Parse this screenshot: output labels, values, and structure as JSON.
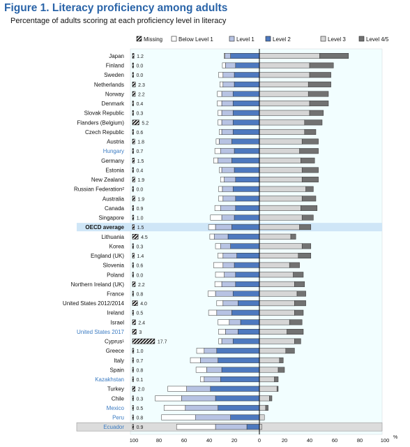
{
  "header": {
    "title": "Figure 1. Literacy proficiency among adults",
    "subtitle": "Percentage of adults scoring at each proficiency level in literacy"
  },
  "colors": {
    "missing": "#111111",
    "below_level_1": "#ffffff",
    "level_1": "#b7c3e3",
    "level_2": "#4d79bf",
    "level_3": "#d6d6d6",
    "level_4_5": "#727272",
    "highlight_label": "#3b7bc2",
    "panel_bg": "#f2feff",
    "oecd_band": "#cfe6f7"
  },
  "chart_data": {
    "type": "bar",
    "subtype": "diverging-stacked-horizontal",
    "title": "Figure 1. Literacy proficiency among adults",
    "subtitle": "Percentage of adults scoring at each proficiency level in literacy",
    "xlim": [
      -100,
      100
    ],
    "x_ticks": [
      "100",
      "80",
      "60",
      "40",
      "20",
      "0",
      "20",
      "40",
      "60",
      "80",
      "100"
    ],
    "x_unit": "%",
    "legend": [
      "Missing",
      "Below Level 1",
      "Level 1",
      "Level 2",
      "Level 3",
      "Level 4/5"
    ],
    "legend_position": "top",
    "categories": [
      "Japan",
      "Finland",
      "Sweden",
      "Netherlands",
      "Norway",
      "Denmark",
      "Slovak Republic",
      "Flanders (Belgium)",
      "Czech Republic",
      "Austria",
      "Hungary",
      "Germany",
      "Estonia",
      "New Zealand",
      "Russian Federation²",
      "Australia",
      "Canada",
      "Singapore",
      "OECD average",
      "Lithuania",
      "Korea",
      "England (UK)",
      "Slovenia",
      "Poland",
      "Northern Ireland (UK)",
      "France",
      "United States 2012/2014",
      "Ireland",
      "Israel",
      "United States 2017",
      "Cyprus¹",
      "Greece",
      "Italy",
      "Spain",
      "Kazakhstan",
      "Turkey",
      "Chile",
      "Mexico",
      "Peru",
      "Ecuador"
    ],
    "highlighted_categories": [
      "Hungary",
      "United States 2017",
      "Kazakhstan",
      "Mexico",
      "Peru",
      "Ecuador"
    ],
    "missing_labels": [
      "1.2",
      "0.0",
      "0.0",
      "2.3",
      "2.2",
      "0.4",
      "0.3",
      "5.2",
      "0.6",
      "1.8",
      "0.7",
      "1.5",
      "0.4",
      "1.9",
      "0.0",
      "1.9",
      "0.9",
      "1.0",
      "1.5",
      "4.5",
      "0.3",
      "1.4",
      "0.6",
      "0.0",
      "2.2",
      "0.8",
      "4.0",
      "0.5",
      "2.4",
      "3",
      "17.7",
      "1.0",
      "0.7",
      "0.8",
      "0.1",
      "2.0",
      "0.3",
      "0.5",
      "0.8",
      "0.9"
    ],
    "series": [
      {
        "name": "Missing",
        "values": [
          1.2,
          0.0,
          0.0,
          2.3,
          2.2,
          0.4,
          0.3,
          5.2,
          0.6,
          1.8,
          0.7,
          1.5,
          0.4,
          1.9,
          0.0,
          1.9,
          0.9,
          1.0,
          1.5,
          4.5,
          0.3,
          1.4,
          0.6,
          0.0,
          2.2,
          0.8,
          4.0,
          0.5,
          2.4,
          3.0,
          17.7,
          1.0,
          0.7,
          0.8,
          0.1,
          2.0,
          0.3,
          0.5,
          0.8,
          0.9
        ]
      },
      {
        "name": "Below Level 1",
        "values": [
          0.6,
          2.5,
          3.5,
          2.5,
          3.5,
          3.5,
          3,
          3,
          2,
          2.5,
          4.5,
          3.5,
          2,
          3,
          3,
          3.5,
          4.5,
          9,
          5.5,
          3.5,
          4,
          4,
          7.5,
          7,
          5.5,
          6,
          5,
          6.5,
          9,
          5.5,
          2.5,
          6,
          8,
          8.5,
          3,
          15,
          21,
          17,
          27,
          31
        ]
      },
      {
        "name": "Level 1",
        "values": [
          4.5,
          8,
          9,
          9,
          9,
          9,
          9,
          9,
          9,
          10,
          11,
          11,
          10,
          9,
          8.5,
          10,
          12,
          10,
          13,
          11,
          8,
          11,
          9,
          9,
          11,
          14,
          12,
          12,
          9,
          10,
          9,
          10,
          14,
          12,
          13,
          19,
          27,
          26,
          28,
          25
        ]
      },
      {
        "name": "Level 2",
        "values": [
          23,
          19,
          20,
          20,
          21,
          21,
          21,
          21,
          21,
          22,
          20,
          22,
          20,
          19,
          21,
          19,
          19,
          20,
          22,
          25,
          23,
          18,
          20,
          19,
          19,
          21,
          17,
          22,
          15,
          17,
          21,
          34,
          33,
          30,
          31,
          39,
          35,
          33,
          23,
          10
        ]
      },
      {
        "name": "Level 3",
        "values": [
          48,
          40,
          40,
          39,
          39,
          40,
          40,
          36,
          36,
          34,
          32,
          33,
          34,
          34,
          37,
          34,
          33,
          34,
          32,
          25,
          34,
          31,
          24,
          27,
          28,
          30,
          28,
          28,
          24,
          22,
          28,
          21,
          16,
          15,
          12,
          14,
          8,
          5,
          4,
          2
        ]
      },
      {
        "name": "Level 4/5",
        "values": [
          23,
          19,
          17,
          18,
          16,
          15,
          11,
          14,
          9,
          13,
          15,
          11,
          13,
          13,
          6,
          11,
          13,
          9,
          9,
          4,
          7,
          10,
          8,
          8,
          8,
          7,
          9,
          7,
          10,
          13,
          5,
          7,
          3,
          5,
          3,
          1,
          2,
          2,
          0,
          0
        ]
      }
    ]
  }
}
